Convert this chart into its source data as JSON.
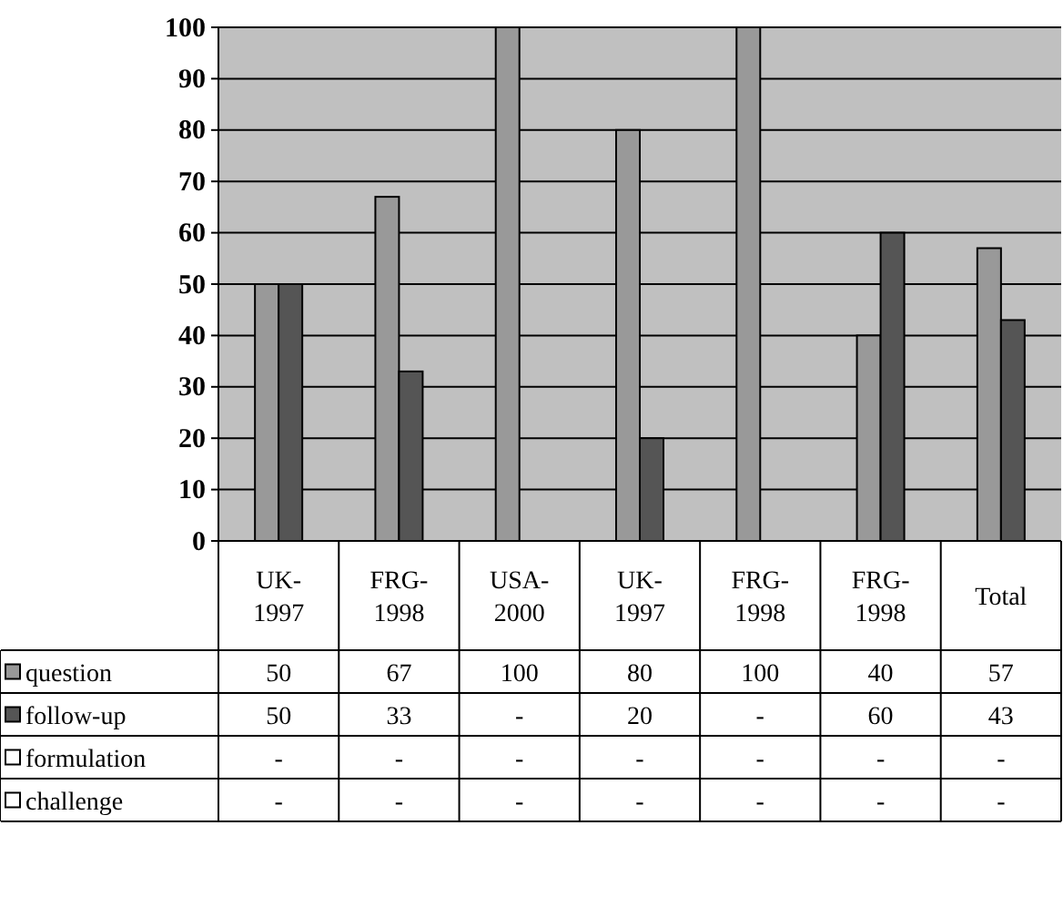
{
  "chart_data": {
    "type": "bar",
    "categories": [
      "UK-1997",
      "FRG-1998",
      "USA-2000",
      "UK-1997",
      "FRG-1998",
      "FRG-1998",
      "Total"
    ],
    "series": [
      {
        "name": "question",
        "color": "#999999",
        "values": [
          50,
          67,
          100,
          80,
          100,
          40,
          57
        ],
        "value_labels": [
          "50",
          "67",
          "100",
          "80",
          "100",
          "40",
          "57"
        ]
      },
      {
        "name": "follow-up",
        "color": "#555555",
        "values": [
          50,
          33,
          null,
          20,
          null,
          60,
          43
        ],
        "value_labels": [
          "50",
          "33",
          "-",
          "20",
          "-",
          "60",
          "43"
        ]
      },
      {
        "name": "formulation",
        "color": "#ffffff",
        "values": [
          null,
          null,
          null,
          null,
          null,
          null,
          null
        ],
        "value_labels": [
          "-",
          "-",
          "-",
          "-",
          "-",
          "-",
          "-"
        ]
      },
      {
        "name": "challenge",
        "color": "#ffffff",
        "values": [
          null,
          null,
          null,
          null,
          null,
          null,
          null
        ],
        "value_labels": [
          "-",
          "-",
          "-",
          "-",
          "-",
          "-",
          "-"
        ]
      }
    ],
    "ylim": [
      0,
      100
    ],
    "yticks": [
      0,
      10,
      20,
      30,
      40,
      50,
      60,
      70,
      80,
      90,
      100
    ],
    "grid": "y",
    "legend": "bottom"
  }
}
